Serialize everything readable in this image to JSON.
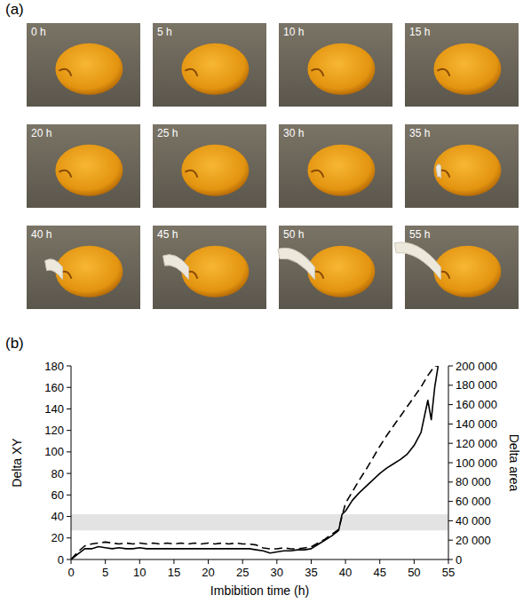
{
  "photo_panel": {
    "label": "(a)",
    "frames": [
      "0 h",
      "5 h",
      "10 h",
      "15 h",
      "20 h",
      "25 h",
      "30 h",
      "35 h",
      "40 h",
      "45 h",
      "50 h",
      "55 h"
    ]
  },
  "chart_data": {
    "type": "line",
    "panel_label": "(b)",
    "x_label": "Imbibition time (h)",
    "y_label": "Delta XY",
    "y2_label": "Delta area",
    "x": [
      0,
      1,
      2,
      3,
      4,
      5,
      6,
      7,
      8,
      9,
      10,
      11,
      12,
      13,
      14,
      15,
      16,
      17,
      18,
      19,
      20,
      21,
      22,
      23,
      24,
      25,
      26,
      27,
      28,
      29,
      30,
      31,
      32,
      33,
      34,
      35,
      36,
      37,
      38,
      39,
      39.5,
      40,
      41,
      42,
      43,
      44,
      45,
      46,
      47,
      48,
      49,
      50,
      51,
      52,
      52.5,
      53,
      53.5
    ],
    "series": [
      {
        "color": "#000000",
        "line_style": "solid",
        "axis": "y",
        "values": [
          0,
          5,
          10,
          10,
          12,
          11,
          10,
          11,
          10,
          10,
          11,
          10,
          10,
          10,
          10,
          10,
          10,
          10,
          10,
          10,
          10,
          10,
          10,
          10,
          10,
          10,
          10,
          9,
          8,
          6,
          7,
          8,
          8,
          9,
          9,
          10,
          14,
          18,
          22,
          27,
          42,
          45,
          55,
          62,
          68,
          74,
          80,
          85,
          89,
          93,
          98,
          106,
          118,
          148,
          130,
          160,
          180
        ]
      },
      {
        "color": "#000000",
        "line_style": "dashed",
        "axis": "y2",
        "values": [
          0,
          8000,
          14000,
          16000,
          17000,
          18000,
          17000,
          16000,
          17000,
          16000,
          17000,
          16000,
          17000,
          16000,
          17000,
          16000,
          17000,
          16000,
          17000,
          16000,
          17000,
          16000,
          17000,
          16000,
          17000,
          16000,
          16000,
          15000,
          12000,
          11000,
          11000,
          12000,
          11000,
          11000,
          12000,
          13000,
          17000,
          21000,
          26000,
          31000,
          45000,
          58000,
          70000,
          82000,
          93000,
          105000,
          117000,
          128000,
          138000,
          148000,
          158000,
          168000,
          178000,
          190000,
          195000,
          200000,
          200000
        ]
      }
    ],
    "xlim": [
      0,
      55
    ],
    "xticks": [
      0,
      5,
      10,
      15,
      20,
      25,
      30,
      35,
      40,
      45,
      50,
      55
    ],
    "ylim": [
      0,
      180
    ],
    "yticks": [
      0,
      20,
      40,
      60,
      80,
      100,
      120,
      140,
      160,
      180
    ],
    "y2lim": [
      0,
      200000
    ],
    "y2ticks": [
      0,
      {
        "value": 20000,
        "label": "20 000"
      },
      {
        "value": 40000,
        "label": "40 000"
      },
      {
        "value": 60000,
        "label": "60 000"
      },
      {
        "value": 80000,
        "label": "80 000"
      },
      {
        "value": 100000,
        "label": "100 000"
      },
      {
        "value": 120000,
        "label": "120 000"
      },
      {
        "value": 140000,
        "label": "140 000"
      },
      {
        "value": 160000,
        "label": "160 000"
      },
      {
        "value": 180000,
        "label": "180 000"
      },
      {
        "value": 200000,
        "label": "200 000"
      }
    ],
    "shaded_band": [
      27,
      42
    ],
    "grid": false
  }
}
